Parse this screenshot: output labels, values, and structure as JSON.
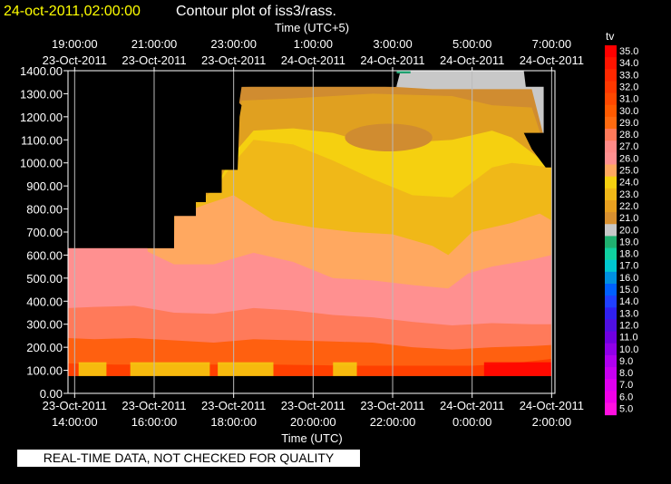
{
  "chart_data": {
    "type": "heatmap",
    "title_date": "24-oct-2011,02:00:00",
    "title": "Contour plot of iss3/rass.",
    "top_axis_label": "Time (UTC+5)",
    "xlabel": "Time (UTC)",
    "colorbar_title": "tv",
    "notice": "REAL-TIME DATA, NOT CHECKED FOR QUALITY",
    "xlim": [
      13.833,
      26.083
    ],
    "ylim": [
      0,
      1400
    ],
    "x_ticks": [
      {
        "x": 14,
        "line1": "23-Oct-2011",
        "line2": "14:00:00"
      },
      {
        "x": 16,
        "line1": "23-Oct-2011",
        "line2": "16:00:00"
      },
      {
        "x": 18,
        "line1": "23-Oct-2011",
        "line2": "18:00:00"
      },
      {
        "x": 20,
        "line1": "23-Oct-2011",
        "line2": "20:00:00"
      },
      {
        "x": 22,
        "line1": "23-Oct-2011",
        "line2": "22:00:00"
      },
      {
        "x": 24,
        "line1": "24-Oct-2011",
        "line2": "0:00:00"
      },
      {
        "x": 26,
        "line1": "24-Oct-2011",
        "line2": "2:00:00"
      }
    ],
    "top_ticks": [
      {
        "x": 14,
        "line1": "19:00:00",
        "line2": "23-Oct-2011"
      },
      {
        "x": 16,
        "line1": "21:00:00",
        "line2": "23-Oct-2011"
      },
      {
        "x": 18,
        "line1": "23:00:00",
        "line2": "23-Oct-2011"
      },
      {
        "x": 20,
        "line1": "1:00:00",
        "line2": "24-Oct-2011"
      },
      {
        "x": 22,
        "line1": "3:00:00",
        "line2": "24-Oct-2011"
      },
      {
        "x": 24,
        "line1": "5:00:00",
        "line2": "24-Oct-2011"
      },
      {
        "x": 26,
        "line1": "7:00:00",
        "line2": "24-Oct-2011"
      }
    ],
    "y_ticks": [
      "0.00",
      "100.00",
      "200.00",
      "300.00",
      "400.00",
      "500.00",
      "600.00",
      "700.00",
      "800.00",
      "900.00",
      "1000.00",
      "1100.00",
      "1200.00",
      "1300.00",
      "1400.00"
    ],
    "colorbar": [
      {
        "label": "35.0",
        "color": "#ff0000"
      },
      {
        "label": "34.0",
        "color": "#ff1400"
      },
      {
        "label": "33.0",
        "color": "#ff2800"
      },
      {
        "label": "32.0",
        "color": "#ff3800"
      },
      {
        "label": "31.0",
        "color": "#ff4800"
      },
      {
        "label": "30.0",
        "color": "#ff5a00"
      },
      {
        "label": "29.0",
        "color": "#ff6a10"
      },
      {
        "label": "28.0",
        "color": "#ff7a5a"
      },
      {
        "label": "27.0",
        "color": "#ff8a88"
      },
      {
        "label": "26.0",
        "color": "#ff9090"
      },
      {
        "label": "25.0",
        "color": "#ffa860"
      },
      {
        "label": "24.0",
        "color": "#f5d010"
      },
      {
        "label": "23.0",
        "color": "#f0b818"
      },
      {
        "label": "22.0",
        "color": "#e8a020"
      },
      {
        "label": "21.0",
        "color": "#d89030"
      },
      {
        "label": "20.0",
        "color": "#c8c8c8"
      },
      {
        "label": "19.0",
        "color": "#20b070"
      },
      {
        "label": "18.0",
        "color": "#10d0a0"
      },
      {
        "label": "17.0",
        "color": "#00c8d0"
      },
      {
        "label": "16.0",
        "color": "#0090e0"
      },
      {
        "label": "15.0",
        "color": "#0060ff"
      },
      {
        "label": "14.0",
        "color": "#2040ff"
      },
      {
        "label": "13.0",
        "color": "#3020f0"
      },
      {
        "label": "12.0",
        "color": "#5010e0"
      },
      {
        "label": "11.0",
        "color": "#7000e0"
      },
      {
        "label": "10.0",
        "color": "#9000e8"
      },
      {
        "label": "9.0",
        "color": "#b000f0"
      },
      {
        "label": "8.0",
        "color": "#c800f0"
      },
      {
        "label": "7.0",
        "color": "#e000f0"
      },
      {
        "label": "6.0",
        "color": "#f000e8"
      },
      {
        "label": "5.0",
        "color": "#ff10e0"
      }
    ],
    "colors": {
      "t30": "#ff4000",
      "t29": "#ff6010",
      "t28": "#ff7a5a",
      "t26": "#ff9090",
      "t25": "#ffa860",
      "t24": "#f5d010",
      "t23": "#f0b818",
      "t22": "#e0a020",
      "t21": "#d08c30",
      "t20": "#c8c8c8",
      "t19": "#20a070",
      "t35": "#ff0000"
    },
    "bands": [
      {
        "color_key": "t30",
        "top": [
          [
            13.833,
            130
          ],
          [
            15,
            125
          ],
          [
            17,
            125
          ],
          [
            19,
            125
          ],
          [
            21,
            120
          ],
          [
            23,
            120
          ],
          [
            24,
            120
          ],
          [
            25,
            130
          ],
          [
            26,
            150
          ]
        ]
      },
      {
        "color_key": "t29",
        "top": [
          [
            13.833,
            240
          ],
          [
            14.5,
            235
          ],
          [
            15.5,
            240
          ],
          [
            16.5,
            230
          ],
          [
            17.5,
            220
          ],
          [
            18.5,
            235
          ],
          [
            19.5,
            230
          ],
          [
            20.5,
            225
          ],
          [
            21.5,
            220
          ],
          [
            22.5,
            200
          ],
          [
            23.5,
            190
          ],
          [
            24.5,
            200
          ],
          [
            25.5,
            205
          ],
          [
            26,
            210
          ]
        ]
      },
      {
        "color_key": "t28",
        "top": [
          [
            13.833,
            370
          ],
          [
            14.5,
            375
          ],
          [
            15.5,
            380
          ],
          [
            16.5,
            350
          ],
          [
            17.5,
            345
          ],
          [
            18.5,
            370
          ],
          [
            19.5,
            360
          ],
          [
            20.5,
            340
          ],
          [
            21.5,
            330
          ],
          [
            22.5,
            310
          ],
          [
            23.5,
            295
          ],
          [
            24.5,
            305
          ],
          [
            25.5,
            300
          ],
          [
            26,
            300
          ]
        ]
      },
      {
        "color_key": "t26",
        "top": [
          [
            13.833,
            630
          ],
          [
            15.83,
            630
          ],
          [
            15.84,
            615
          ],
          [
            16.5,
            560
          ],
          [
            17.5,
            560
          ],
          [
            18.5,
            610
          ],
          [
            19.5,
            570
          ],
          [
            20.5,
            500
          ],
          [
            21.5,
            490
          ],
          [
            22.5,
            470
          ],
          [
            23.4,
            455
          ],
          [
            23.9,
            520
          ],
          [
            24.5,
            550
          ],
          [
            25.5,
            580
          ],
          [
            26,
            600
          ]
        ]
      },
      {
        "color_key": "t25",
        "top": [
          [
            13.833,
            630
          ],
          [
            15.83,
            630
          ],
          [
            15.84,
            630
          ],
          [
            16.5,
            630
          ],
          [
            16.51,
            770
          ],
          [
            17.3,
            820
          ],
          [
            18,
            860
          ],
          [
            19,
            750
          ],
          [
            20,
            720
          ],
          [
            21,
            700
          ],
          [
            22,
            690
          ],
          [
            23,
            640
          ],
          [
            23.4,
            600
          ],
          [
            24,
            700
          ],
          [
            25,
            740
          ],
          [
            25.7,
            780
          ],
          [
            26,
            750
          ]
        ]
      },
      {
        "color_key": "t23",
        "top": [
          [
            16.51,
            770
          ],
          [
            17.5,
            880
          ],
          [
            18,
            1000
          ],
          [
            18.5,
            1100
          ],
          [
            19.5,
            1080
          ],
          [
            20.5,
            1010
          ],
          [
            21.5,
            930
          ],
          [
            22.5,
            860
          ],
          [
            23.5,
            850
          ],
          [
            24.5,
            980
          ],
          [
            25,
            1000
          ],
          [
            26,
            980
          ]
        ]
      },
      {
        "color_key": "t24",
        "top": [
          [
            16.51,
            770
          ],
          [
            17.5,
            880
          ],
          [
            18,
            1040
          ],
          [
            18.5,
            1140
          ],
          [
            19.5,
            1150
          ],
          [
            20.5,
            1130
          ],
          [
            21.5,
            1080
          ],
          [
            22.5,
            1090
          ],
          [
            23.5,
            1100
          ],
          [
            24.5,
            1140
          ],
          [
            25,
            1110
          ],
          [
            26,
            980
          ]
        ]
      },
      {
        "color_key": "t22",
        "top": [
          [
            16.51,
            770
          ],
          [
            18,
            1100
          ],
          [
            18.2,
            1270
          ],
          [
            19.5,
            1280
          ],
          [
            21.5,
            1300
          ],
          [
            23.5,
            1290
          ],
          [
            24.5,
            1250
          ],
          [
            25.5,
            1240
          ],
          [
            26,
            980
          ]
        ]
      },
      {
        "color_key": "t21",
        "top": [
          [
            16.51,
            770
          ],
          [
            18,
            1100
          ],
          [
            18.2,
            1330
          ],
          [
            19.5,
            1335
          ],
          [
            21,
            1335
          ],
          [
            22,
            1330
          ],
          [
            23,
            1320
          ],
          [
            24.5,
            1320
          ],
          [
            25.5,
            1320
          ],
          [
            26,
            980
          ]
        ]
      },
      {
        "color_key": "t20",
        "top": [
          [
            13.833,
            0
          ],
          [
            22.1,
            1335
          ],
          [
            22.2,
            1400
          ],
          [
            25.3,
            1400
          ],
          [
            25.35,
            1330
          ],
          [
            26,
            1330
          ]
        ]
      }
    ],
    "black_mask": [
      [
        13.833,
        630
      ],
      [
        15.83,
        630
      ],
      [
        15.83,
        630
      ],
      [
        16.5,
        630
      ],
      [
        16.5,
        770
      ],
      [
        17.05,
        770
      ],
      [
        17.05,
        830
      ],
      [
        17.3,
        830
      ],
      [
        17.3,
        870
      ],
      [
        17.7,
        870
      ],
      [
        17.7,
        970
      ],
      [
        18.1,
        970
      ],
      [
        18.15,
        1200
      ],
      [
        18.2,
        1250
      ],
      [
        17.7,
        1330
      ],
      [
        22.1,
        1330
      ],
      [
        22.1,
        1400
      ],
      [
        13.833,
        1400
      ]
    ],
    "black_mask_right": [
      [
        25.35,
        1400
      ],
      [
        26.083,
        1400
      ],
      [
        26.083,
        0
      ],
      [
        26,
        0
      ],
      [
        26,
        980
      ],
      [
        25.85,
        980
      ],
      [
        25.5,
        1060
      ],
      [
        25.3,
        1130
      ],
      [
        25.8,
        1130
      ],
      [
        25.8,
        1400
      ]
    ],
    "warm_core": {
      "color_key": "t21",
      "cx": 21.9,
      "cy": 1110,
      "rx": 1.1,
      "ry": 60
    },
    "bottom_fringe": [
      {
        "x0": 14.1,
        "x1": 14.8,
        "color_key": "t24"
      },
      {
        "x0": 15.4,
        "x1": 17.4,
        "color_key": "t24"
      },
      {
        "x0": 17.6,
        "x1": 19.0,
        "color_key": "t24"
      },
      {
        "x0": 20.5,
        "x1": 21.1,
        "color_key": "t24"
      },
      {
        "x0": 24.3,
        "x1": 26.0,
        "color_key": "t35"
      }
    ]
  }
}
